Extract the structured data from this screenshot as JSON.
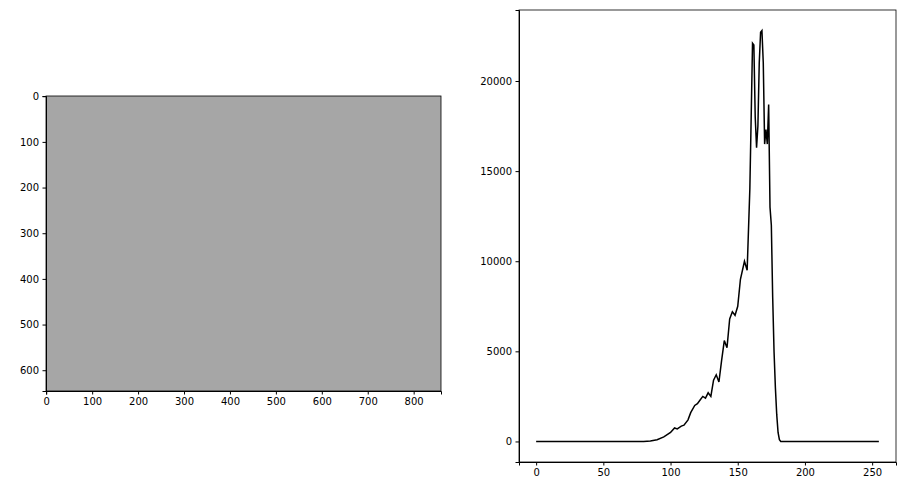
{
  "chart_data": [
    {
      "type": "image",
      "color": "#a6a6a6",
      "xlim": [
        -0.5,
        859.5
      ],
      "ylim": [
        645.5,
        -0.5
      ],
      "xticks": [
        0,
        100,
        200,
        300,
        400,
        500,
        600,
        700,
        800
      ],
      "yticks": [
        0,
        100,
        200,
        300,
        400,
        500,
        600
      ]
    },
    {
      "type": "line",
      "color": "#000000",
      "x": [
        0,
        20,
        40,
        60,
        80,
        85,
        90,
        95,
        100,
        103,
        105,
        108,
        110,
        113,
        115,
        118,
        120,
        122,
        124,
        126,
        128,
        130,
        132,
        134,
        136,
        138,
        140,
        142,
        144,
        146,
        148,
        150,
        152,
        155,
        157,
        159,
        160,
        161,
        162,
        163,
        164,
        165,
        166,
        167,
        168,
        169,
        170,
        171,
        172,
        173,
        174,
        175,
        176,
        177,
        178,
        179,
        180,
        181,
        182,
        183,
        184,
        186,
        191,
        200,
        220,
        240,
        255
      ],
      "values": [
        0,
        0,
        0,
        0,
        0,
        30,
        100,
        250,
        500,
        750,
        700,
        850,
        900,
        1200,
        1600,
        2000,
        2100,
        2300,
        2500,
        2400,
        2700,
        2500,
        3400,
        3700,
        3300,
        4500,
        5600,
        5200,
        6800,
        7200,
        7000,
        7500,
        9000,
        10000,
        9500,
        14000,
        18000,
        22100,
        22000,
        18000,
        16300,
        17500,
        21000,
        22700,
        22800,
        21000,
        16500,
        17300,
        16500,
        18700,
        13000,
        12000,
        8000,
        5000,
        3000,
        1500,
        500,
        100,
        0,
        0,
        0,
        0,
        0,
        0,
        0,
        0,
        0
      ],
      "xlim": [
        -12.75,
        267.75
      ],
      "ylim": [
        -1140,
        23940
      ],
      "xticks": [
        0,
        50,
        100,
        150,
        200,
        250
      ],
      "yticks": [
        0,
        5000,
        10000,
        15000,
        20000
      ]
    }
  ]
}
